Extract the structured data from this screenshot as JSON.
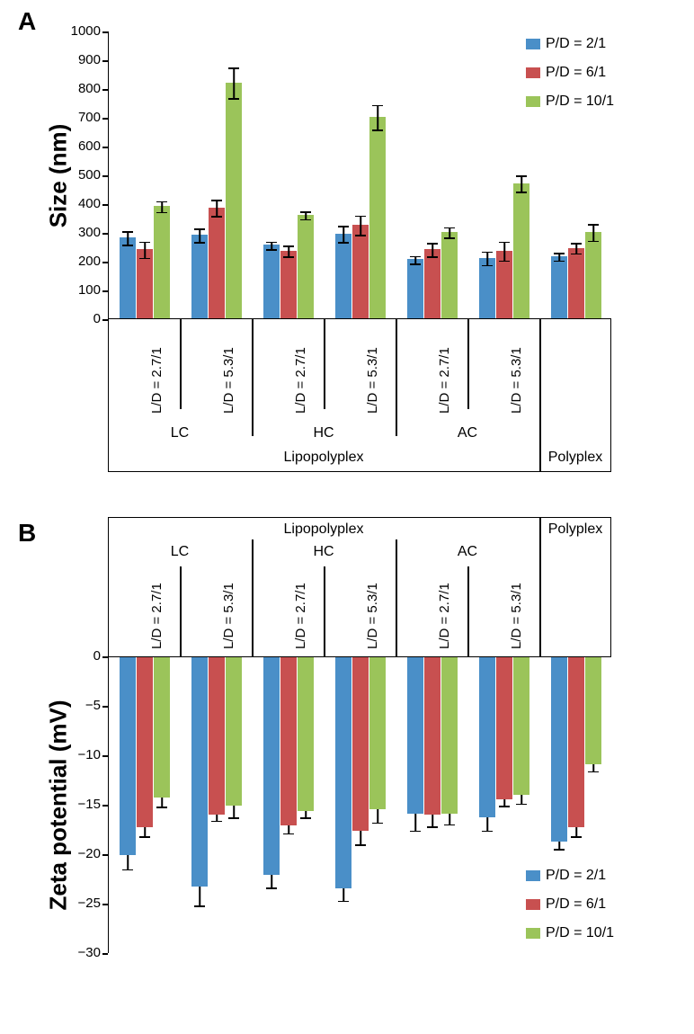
{
  "panelA": {
    "label": "A",
    "ylabel": "Size (nm)",
    "ylim": [
      0,
      1000
    ],
    "yticks": [
      0,
      100,
      200,
      300,
      400,
      500,
      600,
      700,
      800,
      900,
      1000
    ],
    "series_colors": {
      "p1": "#4a8fc8",
      "p2": "#c85050",
      "p3": "#9bc45a"
    },
    "series_labels": {
      "p1": "P/D = 2/1",
      "p2": "P/D = 6/1",
      "p3": "P/D = 10/1"
    },
    "groups": [
      {
        "p1": [
          280,
          25
        ],
        "p2": [
          240,
          30
        ],
        "p3": [
          390,
          20
        ]
      },
      {
        "p1": [
          290,
          25
        ],
        "p2": [
          385,
          30
        ],
        "p3": [
          820,
          55
        ]
      },
      {
        "p1": [
          255,
          15
        ],
        "p2": [
          235,
          20
        ],
        "p3": [
          360,
          15
        ]
      },
      {
        "p1": [
          295,
          30
        ],
        "p2": [
          325,
          35
        ],
        "p3": [
          700,
          45
        ]
      },
      {
        "p1": [
          205,
          15
        ],
        "p2": [
          240,
          25
        ],
        "p3": [
          300,
          20
        ]
      },
      {
        "p1": [
          210,
          25
        ],
        "p2": [
          235,
          35
        ],
        "p3": [
          470,
          30
        ]
      },
      {
        "p1": [
          215,
          15
        ],
        "p2": [
          245,
          20
        ],
        "p3": [
          300,
          30
        ]
      }
    ],
    "group_ld": [
      "L/D = 2.7/1",
      "L/D = 5.3/1",
      "L/D = 2.7/1",
      "L/D = 5.3/1",
      "L/D = 2.7/1",
      "L/D = 5.3/1"
    ],
    "sections": [
      "LC",
      "HC",
      "AC"
    ],
    "superlabels": [
      "Lipopolyplex",
      "Polyplex"
    ]
  },
  "panelB": {
    "label": "B",
    "ylabel": "Zeta potential (mV)",
    "ylim": [
      0,
      -30
    ],
    "yticks": [
      0,
      -5,
      -10,
      -15,
      -20,
      -25,
      -30
    ],
    "series_colors": {
      "p1": "#4a8fc8",
      "p2": "#c85050",
      "p3": "#9bc45a"
    },
    "series_labels": {
      "p1": "P/D = 2/1",
      "p2": "P/D = 6/1",
      "p3": "P/D = 10/1"
    },
    "groups": [
      {
        "p1": [
          -20.0,
          1.5
        ],
        "p2": [
          -17.2,
          1.0
        ],
        "p3": [
          -14.2,
          1.0
        ]
      },
      {
        "p1": [
          -23.2,
          2.0
        ],
        "p2": [
          -15.9,
          0.7
        ],
        "p3": [
          -15.0,
          1.3
        ]
      },
      {
        "p1": [
          -22.0,
          1.4
        ],
        "p2": [
          -17.0,
          0.9
        ],
        "p3": [
          -15.5,
          0.8
        ]
      },
      {
        "p1": [
          -23.4,
          1.3
        ],
        "p2": [
          -17.5,
          1.5
        ],
        "p3": [
          -15.4,
          1.4
        ]
      },
      {
        "p1": [
          -15.8,
          1.8
        ],
        "p2": [
          -15.9,
          1.3
        ],
        "p3": [
          -15.8,
          1.2
        ]
      },
      {
        "p1": [
          -16.2,
          1.4
        ],
        "p2": [
          -14.4,
          0.7
        ],
        "p3": [
          -13.9,
          1.0
        ]
      },
      {
        "p1": [
          -18.6,
          0.9
        ],
        "p2": [
          -17.2,
          1.0
        ],
        "p3": [
          -10.8,
          0.8
        ]
      }
    ],
    "group_ld": [
      "L/D = 2.7/1",
      "L/D = 5.3/1",
      "L/D = 2.7/1",
      "L/D = 5.3/1",
      "L/D = 2.7/1",
      "L/D = 5.3/1"
    ],
    "sections": [
      "LC",
      "HC",
      "AC"
    ],
    "superlabels": [
      "Lipopolyplex",
      "Polyplex"
    ]
  },
  "errcap_width": 12
}
